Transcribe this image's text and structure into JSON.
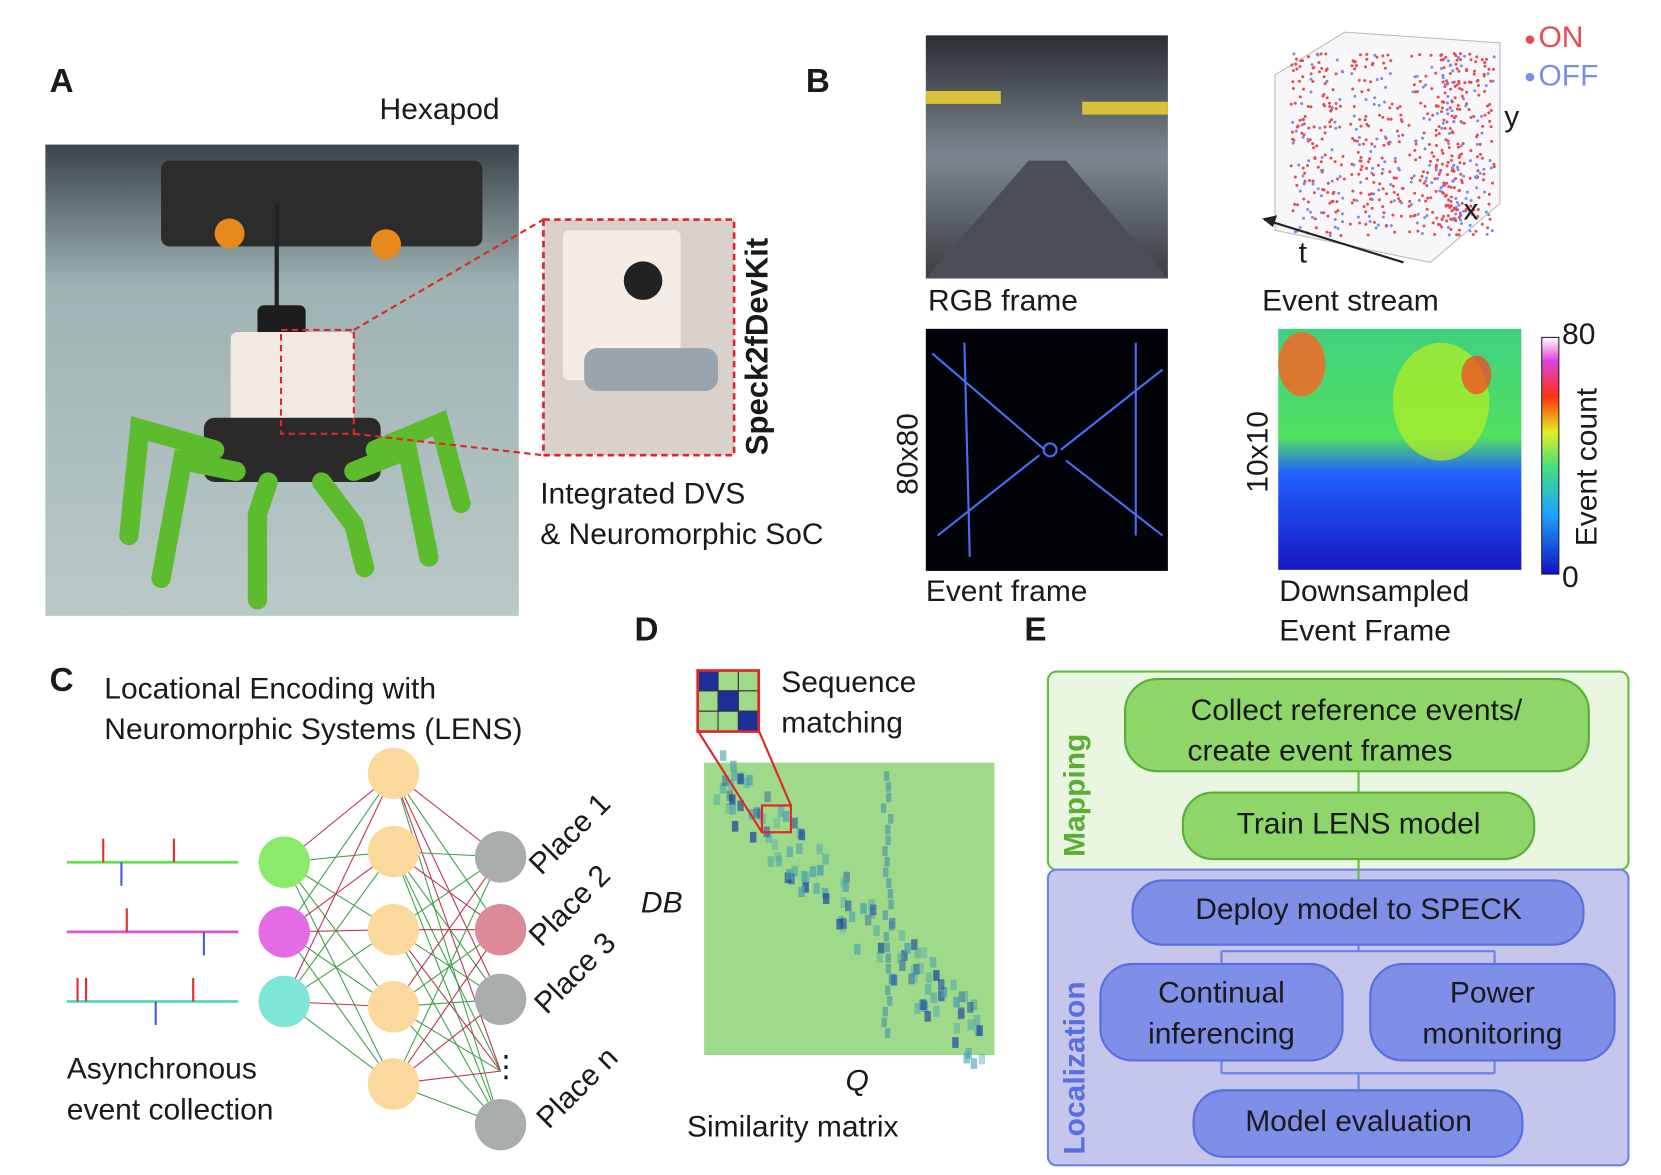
{
  "panel_a": {
    "label": "A",
    "title": "Hexapod",
    "device": "Speck2fDevKit",
    "caption": [
      "Integrated DVS",
      "& Neuromorphic SoC"
    ]
  },
  "panel_b": {
    "label": "B",
    "rgb_caption": "RGB frame",
    "stream_caption": "Event stream",
    "on_label": "ON",
    "off_label": "OFF",
    "axis_y": "y",
    "axis_x": "x",
    "axis_t": "t",
    "event_frame_caption": "Event frame",
    "event_frame_size": "80x80",
    "downsampled_caption": [
      "Downsampled",
      "Event Frame"
    ],
    "downsampled_size": "10x10",
    "colorbar_label": "Event count",
    "colorbar_max": 80,
    "colorbar_min": 0
  },
  "panel_c": {
    "label": "C",
    "title": [
      "Locational Encoding with",
      "Neuromorphic Systems (LENS)"
    ],
    "caption": [
      "Asynchronous",
      "event collection"
    ],
    "places": [
      "Place 1",
      "Place 2",
      "Place 3",
      "Place n"
    ],
    "ellipsis": "⋮"
  },
  "panel_d": {
    "label": "D",
    "inset_caption": [
      "Sequence",
      "matching"
    ],
    "y_axis": "DB",
    "x_axis": "Q",
    "caption": "Similarity matrix"
  },
  "panel_e": {
    "label": "E",
    "mapping_label": "Mapping",
    "localization_label": "Localization",
    "collect": [
      "Collect reference events/",
      "create event frames"
    ],
    "train": "Train LENS model",
    "deploy": "Deploy model to SPECK",
    "inference": [
      "Continual",
      "inferencing"
    ],
    "power": [
      "Power",
      "monitoring"
    ],
    "evaluation": "Model evaluation"
  }
}
